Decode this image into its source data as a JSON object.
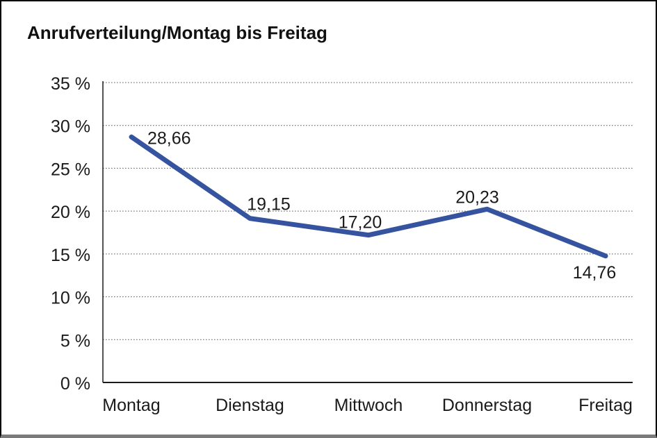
{
  "title": "Anrufverteilung/Montag bis Freitag",
  "chart_data": {
    "type": "line",
    "title": "Anrufverteilung/Montag bis Freitag",
    "categories": [
      "Montag",
      "Dienstag",
      "Mittwoch",
      "Donnerstag",
      "Freitag"
    ],
    "values": [
      28.66,
      19.15,
      17.2,
      20.23,
      14.76
    ],
    "point_labels": [
      "28,66",
      "19,15",
      "17,20",
      "20,23",
      "14,76"
    ],
    "y_ticks": [
      0,
      5,
      10,
      15,
      20,
      25,
      30,
      35
    ],
    "y_tick_labels": [
      "0 %",
      "5 %",
      "10 %",
      "15 %",
      "20 %",
      "25 %",
      "30 %",
      "35 %"
    ],
    "ylim": [
      0,
      35
    ],
    "xlabel": "",
    "ylabel": "",
    "grid": "horizontal-dotted",
    "legend": "none",
    "series_name": "Anrufverteilung",
    "line_color": "#35539E"
  },
  "colors": {
    "line": "#35539E",
    "axis": "#1a1a1a",
    "grid": "#5c5c5c",
    "text": "#1a1a1a",
    "background": "#ffffff",
    "frame_border": "#000000",
    "frame_border_bottom": "#7a7a7a"
  }
}
